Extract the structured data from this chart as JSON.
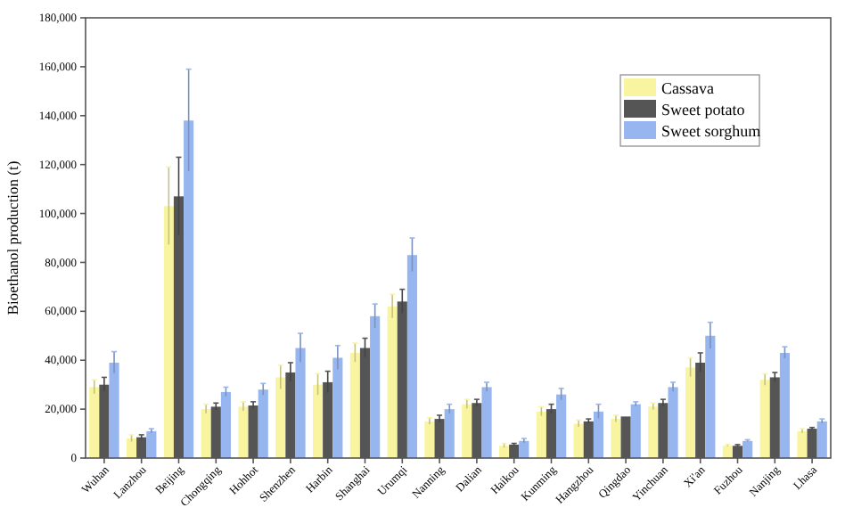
{
  "chart_data": {
    "type": "bar",
    "ylabel": "Bioethanol production (t)",
    "categories": [
      "Wuhan",
      "Lanzhou",
      "Beijing",
      "Chongqing",
      "Hohhot",
      "Shenzhen",
      "Harbin",
      "Shanghai",
      "Urumqi",
      "Nanning",
      "Dalian",
      "Haikou",
      "Kunming",
      "Hangzhou",
      "Qingdao",
      "Yinchuan",
      "Xi'an",
      "Fuzhou",
      "Nanjing",
      "Lhasa"
    ],
    "series": [
      {
        "name": "Cassava",
        "color": "#f8f4a0",
        "values": [
          29000,
          8000,
          103000,
          20000,
          21000,
          33000,
          30000,
          43000,
          62000,
          15000,
          22000,
          5000,
          19000,
          14000,
          16000,
          21000,
          37000,
          5000,
          32000,
          11000
        ],
        "errors": [
          3000,
          1500,
          16000,
          2000,
          2000,
          5000,
          4500,
          4000,
          5000,
          1500,
          2000,
          1000,
          2000,
          1500,
          1500,
          1500,
          4000,
          500,
          2500,
          1000
        ]
      },
      {
        "name": "Sweet potato",
        "color": "#555555",
        "values": [
          30000,
          8500,
          107000,
          21000,
          21500,
          35000,
          31000,
          45000,
          64000,
          16000,
          22500,
          5500,
          20000,
          15000,
          17000,
          22500,
          39000,
          5000,
          33000,
          12000
        ],
        "errors": [
          3000,
          1000,
          16000,
          1500,
          1500,
          4000,
          4500,
          4000,
          5000,
          1500,
          1500,
          500,
          2000,
          1000,
          null,
          1500,
          4000,
          500,
          2000,
          500
        ]
      },
      {
        "name": "Sweet sorghum",
        "color": "#97b6ef",
        "values": [
          39000,
          11000,
          138000,
          27000,
          28000,
          45000,
          41000,
          58000,
          83000,
          20000,
          29000,
          7000,
          26000,
          19000,
          22000,
          29000,
          50000,
          7000,
          43000,
          15000
        ],
        "errors": [
          4500,
          1000,
          21000,
          2000,
          2500,
          6000,
          5000,
          5000,
          7000,
          2000,
          2000,
          1000,
          2500,
          3000,
          1000,
          2000,
          5500,
          500,
          2500,
          1000
        ]
      }
    ],
    "ylim": [
      0,
      180000
    ],
    "yticks": [
      0,
      {
        "value": 20000,
        "label": "20,000"
      },
      {
        "value": 40000,
        "label": "40,000"
      },
      {
        "value": 60000,
        "label": "60,000"
      },
      {
        "value": 80000,
        "label": "80,000"
      },
      {
        "value": 100000,
        "label": "100,000"
      },
      {
        "value": 120000,
        "label": "120,000"
      },
      {
        "value": 140000,
        "label": "140,000"
      },
      {
        "value": 160000,
        "label": "160,000"
      },
      {
        "value": 180000,
        "label": "180,000"
      }
    ],
    "legend": "top right",
    "grid": false
  }
}
